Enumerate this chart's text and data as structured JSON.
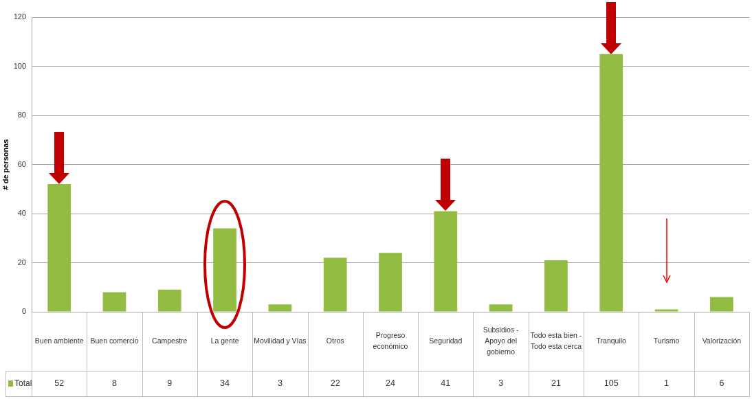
{
  "chart_data": {
    "type": "bar",
    "ylabel": "# de personas",
    "categories": [
      "Buen ambiente",
      "Buen comercio",
      "Campestre",
      "La gente",
      "Movilidad y Vías",
      "Otros",
      "Progreso económico",
      "Seguridad",
      "Subsidios - Apoyo del gobierno",
      "Todo esta bien - Todo esta cerca",
      "Tranquilo",
      "Turismo",
      "Valorización"
    ],
    "series": [
      {
        "name": "Total",
        "color": "#93bd42",
        "values": [
          52,
          8,
          9,
          34,
          3,
          22,
          24,
          41,
          3,
          21,
          105,
          1,
          6
        ]
      }
    ],
    "ylim": [
      0,
      120
    ],
    "yticks": [
      0,
      20,
      40,
      60,
      80,
      100,
      120
    ],
    "grid": "y",
    "legend": "bottom left",
    "data_labels": true
  }
}
